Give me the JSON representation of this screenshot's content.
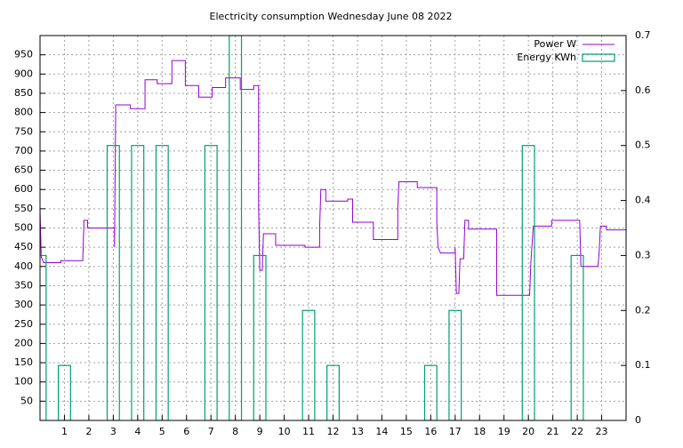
{
  "chart_data": {
    "type": "line",
    "title": "Electricity consumption Wednesday June 08 2022",
    "xlim": [
      0,
      24
    ],
    "xticks": [
      1,
      2,
      3,
      4,
      5,
      6,
      7,
      8,
      9,
      10,
      11,
      12,
      13,
      14,
      15,
      16,
      17,
      18,
      19,
      20,
      21,
      22,
      23
    ],
    "ylim": [
      0,
      1000
    ],
    "yticks": [
      50,
      100,
      150,
      200,
      250,
      300,
      350,
      400,
      450,
      500,
      550,
      600,
      650,
      700,
      750,
      800,
      850,
      900,
      950
    ],
    "y2lim": [
      0,
      0.7
    ],
    "y2ticks": [
      0,
      0.1,
      0.2,
      0.3,
      0.4,
      0.5,
      0.6,
      0.7
    ],
    "grid": true,
    "legend": "top-right",
    "series": [
      {
        "name": "Power W",
        "color": "#9400d3",
        "x": [
          0,
          0.05,
          0.15,
          0.85,
          0.85,
          1.75,
          1.8,
          1.95,
          1.95,
          3.05,
          3.05,
          3.1,
          3.7,
          3.7,
          4.3,
          4.3,
          4.8,
          4.8,
          5.4,
          5.4,
          5.95,
          5.95,
          6.5,
          6.5,
          7.05,
          7.05,
          7.6,
          7.6,
          8.2,
          8.2,
          8.75,
          8.75,
          8.95,
          8.95,
          9.0,
          9.1,
          9.15,
          9.65,
          9.65,
          10.85,
          10.85,
          11.45,
          11.45,
          11.5,
          11.7,
          11.7,
          12.6,
          12.6,
          12.8,
          12.8,
          13.65,
          13.65,
          14.65,
          14.65,
          14.7,
          15.45,
          15.45,
          16.25,
          16.25,
          16.3,
          16.4,
          17.0,
          17.0,
          17.05,
          17.15,
          17.2,
          17.35,
          17.4,
          17.55,
          17.55,
          18.7,
          18.7,
          20.05,
          20.1,
          20.2,
          20.95,
          20.95,
          22.1,
          22.15,
          22.85,
          22.9,
          22.95,
          23.2,
          23.2,
          24
        ],
        "values": [
          550,
          425,
          410,
          410,
          415,
          415,
          520,
          520,
          500,
          500,
          450,
          820,
          820,
          810,
          810,
          885,
          885,
          875,
          875,
          935,
          935,
          870,
          870,
          840,
          840,
          865,
          865,
          890,
          890,
          860,
          860,
          870,
          870,
          560,
          390,
          390,
          485,
          485,
          455,
          455,
          450,
          450,
          500,
          600,
          600,
          570,
          570,
          575,
          575,
          515,
          515,
          470,
          470,
          550,
          620,
          620,
          605,
          605,
          515,
          450,
          435,
          435,
          450,
          330,
          330,
          420,
          420,
          520,
          520,
          497,
          497,
          325,
          325,
          410,
          505,
          505,
          520,
          520,
          400,
          400,
          440,
          505,
          505,
          495,
          495
        ]
      },
      {
        "name": "Energy KWh",
        "color": "#009e73",
        "axis": "y2",
        "type": "bar",
        "x": [
          0,
          1,
          2,
          3,
          4,
          5,
          6,
          7,
          8,
          9,
          10,
          11,
          12,
          13,
          14,
          15,
          16,
          17,
          18,
          19,
          20,
          21,
          22,
          23
        ],
        "values": [
          0.3,
          0.1,
          0,
          0.5,
          0.5,
          0.5,
          0,
          0.5,
          0.7,
          0.3,
          0,
          0.2,
          0.1,
          0,
          0,
          0,
          0.1,
          0.2,
          0,
          0,
          0.5,
          0,
          0.3,
          0
        ]
      }
    ]
  }
}
